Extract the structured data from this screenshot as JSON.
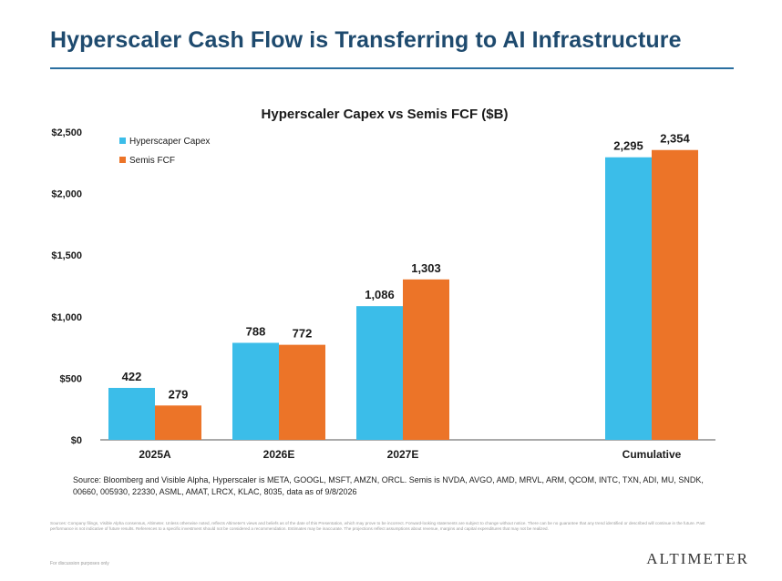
{
  "slide": {
    "title": "Hyperscaler Cash Flow is Transferring to AI Infrastructure",
    "source_note": "Source: Bloomberg and Visible Alpha, Hyperscaler is META, GOOGL, MSFT, AMZN, ORCL. Semis is NVDA, AVGO, AMD, MRVL, ARM, QCOM, INTC, TXN, ADI, MU, SNDK, 00660, 005930, 22330, ASML, AMAT, LRCX, KLAC, 8035, data as of 9/8/2026",
    "disclaimer": "Sources: Company filings, Visible Alpha consensus, Altimeter. Unless otherwise noted, reflects Altimeter's views and beliefs as of the date of this Presentation, which may prove to be incorrect. Forward-looking statements are subject to change without notice. There can be no guarantee that any trend identified or described will continue in the future. Past performance is not indicative of future results. References to a specific investment should not be considered a recommendation. Estimates may be inaccurate. The projections reflect assumptions about revenue, margins and capital expenditures that may not be realized.",
    "footer_note": "For discussion purposes only",
    "brand": "ALTIMETER"
  },
  "colors": {
    "title": "#1e4a6e",
    "rule": "#2a6fa0",
    "capex": "#3bbde9",
    "fcf": "#ec7428"
  },
  "chart_data": {
    "type": "bar",
    "title": "Hyperscaler Capex vs Semis FCF ($B)",
    "categories": [
      "2025A",
      "2026E",
      "2027E",
      "Cumulative"
    ],
    "series": [
      {
        "name": "Hyperscaper Capex",
        "values": [
          422,
          788,
          1086,
          2295
        ],
        "labels": [
          "422",
          "788",
          "1,086",
          "2,295"
        ]
      },
      {
        "name": "Semis FCF",
        "values": [
          279,
          772,
          1303,
          2354
        ],
        "labels": [
          "279",
          "772",
          "1,303",
          "2,354"
        ]
      }
    ],
    "ylim": [
      0,
      2500
    ],
    "yticks": [
      0,
      500,
      1000,
      1500,
      2000,
      2500
    ],
    "ytick_labels": [
      "$0",
      "$500",
      "$1,000",
      "$1,500",
      "$2,000",
      "$2,500"
    ],
    "legend_position": "top-left",
    "grid": false
  }
}
